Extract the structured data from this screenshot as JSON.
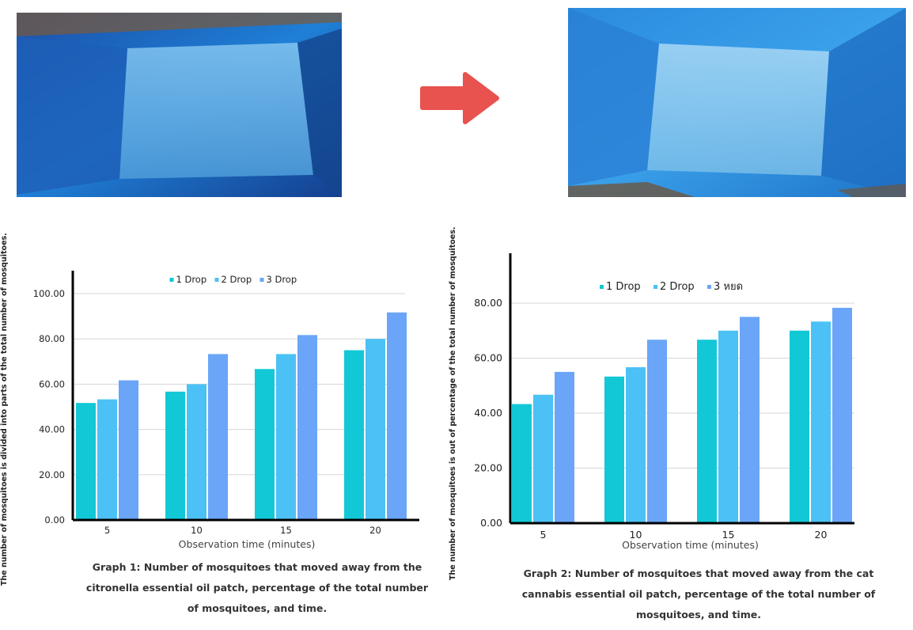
{
  "images": [
    {
      "description": "Photo of blue netting mosquito test box (before)",
      "icon": "photo-before"
    },
    {
      "description": "Photo of blue netting mosquito test box (after)",
      "icon": "photo-after"
    }
  ],
  "arrow": {
    "color": "#e8524f",
    "icon": "right-arrow-icon"
  },
  "chart_data": [
    {
      "type": "bar",
      "ylabel": "The number of mosquitoes is divided into parts of the total number of mosquitoes.",
      "xlabel": "Observation time (minutes)",
      "categories": [
        "5",
        "10",
        "15",
        "20"
      ],
      "yticks": [
        "0.00",
        "20.00",
        "40.00",
        "60.00",
        "80.00",
        "100.00"
      ],
      "ylim": [
        0,
        110
      ],
      "grid": true,
      "legend_position": "top",
      "series": [
        {
          "name": "1 Drop",
          "color": "#12c8d6",
          "values": [
            51.7,
            56.7,
            66.7,
            75.0
          ]
        },
        {
          "name": "2 Drop",
          "color": "#4cc1f5",
          "values": [
            53.3,
            60.0,
            73.3,
            80.0
          ]
        },
        {
          "name": "3 Drop",
          "color": "#6aa5f7",
          "values": [
            61.7,
            73.3,
            81.7,
            91.7
          ]
        }
      ],
      "caption": "Graph 1: Number of mosquitoes that moved away from the citronella essential oil patch, percentage of the total number of mosquitoes, and time."
    },
    {
      "type": "bar",
      "ylabel": "The number of mosquitoes is out of percentage of the total number of mosquitoes.",
      "xlabel": "Observation time (minutes)",
      "categories": [
        "5",
        "10",
        "15",
        "20"
      ],
      "yticks": [
        "0.00",
        "20.00",
        "40.00",
        "60.00",
        "80.00"
      ],
      "ylim": [
        0,
        90
      ],
      "grid": true,
      "legend_position": "top",
      "series": [
        {
          "name": "1 Drop",
          "color": "#12c8d6",
          "values": [
            43.3,
            53.3,
            66.7,
            70.0
          ]
        },
        {
          "name": "2 Drop",
          "color": "#4cc1f5",
          "values": [
            46.7,
            56.7,
            70.0,
            73.3
          ]
        },
        {
          "name": "3 หยด",
          "color": "#6aa5f7",
          "values": [
            55.0,
            66.7,
            75.0,
            78.3
          ]
        }
      ],
      "caption": "Graph 2: Number of mosquitoes that moved away from the cat cannabis essential oil patch, percentage of the total number of mosquitoes, and time."
    }
  ]
}
